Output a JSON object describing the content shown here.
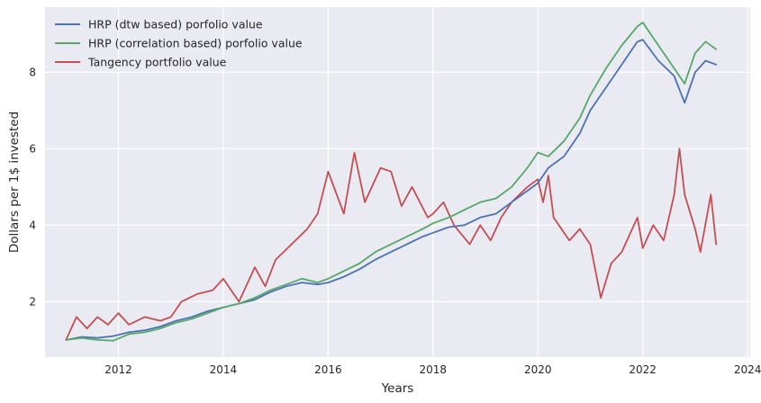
{
  "chart_data": {
    "type": "line",
    "title": "",
    "xlabel": "Years",
    "ylabel": "Dollars per 1$ invested",
    "xlim": [
      2010.6,
      2024.05
    ],
    "ylim": [
      0.55,
      9.7
    ],
    "xticks": [
      2012,
      2014,
      2016,
      2018,
      2020,
      2022,
      2024
    ],
    "xtick_labels": [
      "2012",
      "2014",
      "2016",
      "2018",
      "2020",
      "2022",
      "2024"
    ],
    "yticks": [
      2,
      4,
      6,
      8
    ],
    "ytick_labels": [
      "2",
      "4",
      "6",
      "8"
    ],
    "grid": true,
    "legend_position": "top-left",
    "background": "#eaeaf2",
    "series": [
      {
        "name": "HRP (dtw based) porfolio value",
        "color": "#4c72b0",
        "x": [
          2011.0,
          2011.3,
          2011.6,
          2011.9,
          2012.2,
          2012.5,
          2012.8,
          2013.1,
          2013.4,
          2013.7,
          2014.0,
          2014.3,
          2014.6,
          2014.9,
          2015.2,
          2015.5,
          2015.8,
          2016.0,
          2016.3,
          2016.6,
          2016.9,
          2017.2,
          2017.5,
          2017.8,
          2018.0,
          2018.3,
          2018.6,
          2018.9,
          2019.2,
          2019.5,
          2019.8,
          2020.0,
          2020.2,
          2020.5,
          2020.8,
          2021.0,
          2021.3,
          2021.6,
          2021.9,
          2022.0,
          2022.3,
          2022.6,
          2022.8,
          2023.0,
          2023.2,
          2023.4
        ],
        "values": [
          1.0,
          1.08,
          1.05,
          1.1,
          1.2,
          1.25,
          1.35,
          1.5,
          1.6,
          1.75,
          1.85,
          1.95,
          2.05,
          2.25,
          2.4,
          2.5,
          2.45,
          2.5,
          2.65,
          2.85,
          3.1,
          3.3,
          3.5,
          3.7,
          3.8,
          3.95,
          4.0,
          4.2,
          4.3,
          4.6,
          4.9,
          5.1,
          5.5,
          5.8,
          6.4,
          7.0,
          7.6,
          8.2,
          8.8,
          8.85,
          8.3,
          7.9,
          7.2,
          8.0,
          8.3,
          8.2
        ]
      },
      {
        "name": "HRP (correlation based) porfolio value",
        "color": "#55a868",
        "x": [
          2011.0,
          2011.3,
          2011.6,
          2011.9,
          2012.2,
          2012.5,
          2012.8,
          2013.1,
          2013.4,
          2013.7,
          2014.0,
          2014.3,
          2014.6,
          2014.9,
          2015.2,
          2015.5,
          2015.8,
          2016.0,
          2016.3,
          2016.6,
          2016.9,
          2017.2,
          2017.5,
          2017.8,
          2018.0,
          2018.3,
          2018.6,
          2018.9,
          2019.2,
          2019.5,
          2019.8,
          2020.0,
          2020.2,
          2020.5,
          2020.8,
          2021.0,
          2021.3,
          2021.6,
          2021.9,
          2022.0,
          2022.3,
          2022.6,
          2022.8,
          2023.0,
          2023.2,
          2023.4
        ],
        "values": [
          1.0,
          1.05,
          1.0,
          0.98,
          1.15,
          1.2,
          1.3,
          1.45,
          1.55,
          1.7,
          1.85,
          1.95,
          2.1,
          2.3,
          2.45,
          2.6,
          2.5,
          2.6,
          2.8,
          3.0,
          3.3,
          3.5,
          3.7,
          3.9,
          4.05,
          4.2,
          4.4,
          4.6,
          4.7,
          5.0,
          5.5,
          5.9,
          5.8,
          6.2,
          6.8,
          7.4,
          8.1,
          8.7,
          9.2,
          9.3,
          8.7,
          8.1,
          7.7,
          8.5,
          8.8,
          8.6
        ]
      },
      {
        "name": "Tangency portfolio value",
        "color": "#c44e52",
        "x": [
          2011.0,
          2011.2,
          2011.4,
          2011.6,
          2011.8,
          2012.0,
          2012.2,
          2012.5,
          2012.8,
          2013.0,
          2013.2,
          2013.5,
          2013.8,
          2014.0,
          2014.3,
          2014.6,
          2014.8,
          2015.0,
          2015.3,
          2015.6,
          2015.8,
          2016.0,
          2016.3,
          2016.5,
          2016.7,
          2017.0,
          2017.2,
          2017.4,
          2017.6,
          2017.9,
          2018.0,
          2018.2,
          2018.4,
          2018.7,
          2018.9,
          2019.1,
          2019.3,
          2019.5,
          2019.8,
          2020.0,
          2020.1,
          2020.2,
          2020.3,
          2020.6,
          2020.8,
          2021.0,
          2021.2,
          2021.4,
          2021.6,
          2021.9,
          2022.0,
          2022.2,
          2022.4,
          2022.6,
          2022.7,
          2022.8,
          2023.0,
          2023.1,
          2023.3,
          2023.4
        ],
        "values": [
          1.0,
          1.6,
          1.3,
          1.6,
          1.4,
          1.7,
          1.4,
          1.6,
          1.5,
          1.6,
          2.0,
          2.2,
          2.3,
          2.6,
          2.0,
          2.9,
          2.4,
          3.1,
          3.5,
          3.9,
          4.3,
          5.4,
          4.3,
          5.9,
          4.6,
          5.5,
          5.4,
          4.5,
          5.0,
          4.2,
          4.3,
          4.6,
          4.0,
          3.5,
          4.0,
          3.6,
          4.2,
          4.6,
          5.0,
          5.2,
          4.6,
          5.3,
          4.2,
          3.6,
          3.9,
          3.5,
          2.1,
          3.0,
          3.3,
          4.2,
          3.4,
          4.0,
          3.6,
          4.8,
          6.0,
          4.8,
          3.9,
          3.3,
          4.8,
          3.5
        ]
      }
    ]
  }
}
